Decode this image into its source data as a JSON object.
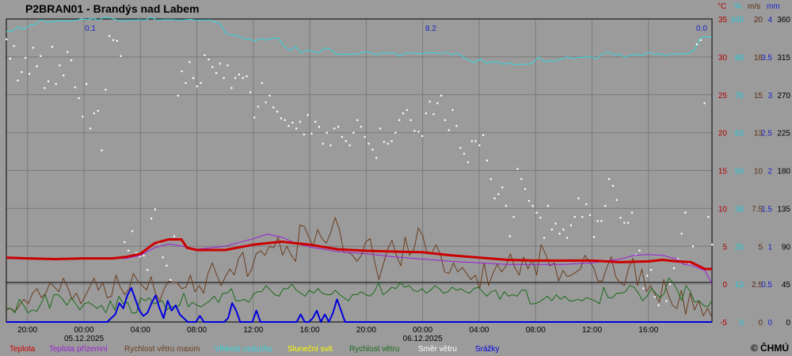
{
  "title": "P2BRAN01 - Brandýs nad Labem",
  "copyright": "© ČHMÚ",
  "colors": {
    "background": "#9b9b9b",
    "grid": "#7a7a7a",
    "teplota": "#cc0000",
    "teplota_prizemni": "#9b1fd6",
    "rychlost_vetru_maxim": "#6b3d1e",
    "vlhkost_vzduchu": "#33d6e0",
    "slunecni_svit": "#ffff00",
    "rychlost_vetru": "#1a6b1a",
    "smer_vetru": "#ffffff",
    "srazky": "#0000dd"
  },
  "chart_data": {
    "type": "line",
    "x_ticks": [
      "20:00",
      "00:00",
      "04:00",
      "08:00",
      "12:00",
      "16:00",
      "20:00",
      "00:00",
      "04:00",
      "08:00",
      "12:00",
      "16:00"
    ],
    "date_labels": [
      {
        "at": "00:00",
        "label": "05.12.2025"
      },
      {
        "at": "00:00",
        "label": "06.12.2025"
      }
    ],
    "axis_units": [
      "°C",
      "%",
      "m/s",
      "mm"
    ],
    "axes": [
      {
        "unit": "°C",
        "ticks": [
          "35",
          "30",
          "25",
          "20",
          "15",
          "10",
          "5",
          "0",
          "-5"
        ],
        "color": "#b00000"
      },
      {
        "unit": "%",
        "ticks": [
          "100",
          "88",
          "75",
          "63",
          "50",
          "38",
          "25",
          "13",
          "0"
        ],
        "color": "#22c8d8"
      },
      {
        "unit": "m/s",
        "ticks": [
          "20",
          "18",
          "15",
          "13",
          "10",
          "7.5",
          "5",
          "2.5",
          "0"
        ],
        "color": "#5a2d10"
      },
      {
        "unit": "mm",
        "ticks": [
          "4",
          "3.5",
          "3",
          "2.5",
          "2",
          "1.5",
          "1",
          "0.5",
          "0"
        ],
        "color": "#1a24c8"
      },
      {
        "unit": "°",
        "ticks": [
          "360",
          "315",
          "270",
          "225",
          "180",
          "135",
          "90",
          "45",
          "0"
        ],
        "color": "#000000"
      }
    ],
    "annotations": [
      "0.1",
      "8.2",
      "0.0"
    ],
    "legend": [
      "Teplota",
      "Teplota přízemní",
      "Rychlost větru maxim",
      "Vlhkost vzduchu",
      "Sluneční svit",
      "Rychlost větru",
      "Směr  větru",
      "Srážky"
    ],
    "x_range_hours": [
      -5.5,
      44.5
    ],
    "series": [
      {
        "name": "Teplota",
        "color": "#cc0000",
        "x": [
          -5.5,
          -4,
          -2,
          0,
          1,
          2,
          3,
          4,
          5,
          6,
          6.9,
          7.3,
          8,
          10,
          12,
          14,
          16,
          18,
          20,
          22,
          24,
          26,
          28,
          30,
          32,
          34,
          36,
          38,
          40,
          41,
          42,
          43,
          44,
          44.5
        ],
        "values": [
          3.5,
          3.4,
          3.3,
          3.4,
          3.4,
          3.4,
          3.6,
          4,
          5.4,
          5.9,
          5.9,
          4.8,
          4.5,
          4.5,
          5.2,
          5.6,
          5.2,
          4.6,
          4.4,
          4.3,
          4.2,
          3.8,
          3.5,
          3.2,
          3.1,
          3.1,
          3.1,
          2.9,
          3,
          3.2,
          3,
          2.9,
          2,
          2
        ]
      },
      {
        "name": "Teplota přízemní",
        "color": "#9b1fd6",
        "x": [
          -5.5,
          -4,
          -2,
          0,
          2,
          3,
          4,
          5,
          6,
          7,
          8,
          10,
          12,
          13,
          14,
          15,
          16,
          18,
          20,
          22,
          24,
          26,
          28,
          30,
          32,
          34,
          36,
          38,
          39,
          40,
          41,
          42,
          42.5,
          43,
          44,
          44.5
        ],
        "values": [
          3.4,
          3.3,
          3.3,
          3.3,
          3.4,
          3.4,
          3.8,
          4.8,
          5.3,
          5,
          4.6,
          5,
          6,
          6.6,
          6.2,
          5.4,
          4.9,
          4.3,
          4,
          3.6,
          3.3,
          3,
          2.8,
          2.6,
          2.6,
          2.6,
          2.8,
          3.3,
          3.8,
          3.9,
          3.8,
          3.3,
          2.6,
          2.5,
          1.8,
          0
        ]
      },
      {
        "name": "Rychlost větru maxim",
        "color": "#6b3d1e",
        "values": [
          0.8,
          0.9,
          0.7,
          1.1,
          1.5,
          1.2,
          1.9,
          2.2,
          1.6,
          1.9,
          2.6,
          2.3,
          2.0,
          2.9,
          2.3,
          1.5,
          1.9,
          1.2,
          1.7,
          2.3,
          2.9,
          2.1,
          2.6,
          1.6,
          1.7,
          3.1,
          2.3,
          1.8,
          2.2,
          3.2,
          2.7,
          2.4,
          2.1,
          3.0,
          1.9,
          1.4,
          2.2,
          2.7,
          2.6,
          2.6,
          2.2,
          2.3,
          3.1,
          2.0,
          2.4,
          1.9,
          3.2,
          3.9,
          3.1,
          2.4,
          3.0,
          3.5,
          3.1,
          4.2,
          4.6,
          3.0,
          3.5,
          4.5,
          4.7,
          4.4,
          5.0,
          4.9,
          5.6,
          4.4,
          5.0,
          4.4,
          4.0,
          6.4,
          6.3,
          5.6,
          5.0,
          6.1,
          5.5,
          5.2,
          5.9,
          6.9,
          6.1,
          4.6,
          4.6,
          4.4,
          4.0,
          4.4,
          5.3,
          5.5,
          4.0,
          2.8,
          3.8,
          4.8,
          5.4,
          4.4,
          3.7,
          5.6,
          4.4,
          4.8,
          6.2,
          5.7,
          4.5,
          4.5,
          5.1,
          4.5,
          3.3,
          3.2,
          3.9,
          3.3,
          3.6,
          3.2,
          2.8,
          3.1,
          2.2,
          3.9,
          2.4,
          3.2,
          3.8,
          3.3,
          3.7,
          4.5,
          3.6,
          3.1,
          4.3,
          3.5,
          4.1,
          3.1,
          5.1,
          4.5,
          3.7,
          3.9,
          2.7,
          3.4,
          3.0,
          3.1,
          3.3,
          3.5,
          4.4,
          4.0,
          3.6,
          2.7,
          2.7,
          3.6,
          4.3,
          3.0,
          2.6,
          2.4,
          3.6,
          4.2,
          2.4,
          3.5,
          2.0,
          2.4,
          1.8,
          1.3,
          2.8,
          1.8,
          1.1,
          0.9,
          2.1,
          0.5,
          1.9,
          0.8,
          1.4,
          0.4,
          0.9,
          0.3
        ]
      },
      {
        "name": "Vlhkost vzduchu",
        "color": "#33d6e0",
        "values": [
          95.9,
          96.0,
          97.4,
          96.6,
          97.8,
          98.2,
          99.8,
          98.9,
          99.1,
          99.4,
          99.5,
          99.3,
          99.6,
          100.0,
          99.8,
          100.2,
          99.5,
          100.6,
          100.3,
          99.8,
          99.4,
          99.5,
          99.7,
          99.8,
          99.6,
          100.6,
          99.6,
          99.8,
          99.8,
          99.8,
          99.5,
          99.8,
          99.9,
          99.6,
          99.6,
          99.8,
          99.2,
          98.3,
          95.2,
          94.7,
          94.5,
          93.5,
          93.4,
          92.8,
          93.6,
          93.0,
          93.7,
          93.6,
          91.1,
          89.6,
          90.8,
          88.8,
          89.8,
          89.2,
          88.8,
          90.4,
          90.1,
          88.3,
          88.3,
          88.4,
          88.4,
          88.5,
          89.2,
          88.9,
          88.2,
          88.8,
          88.7,
          88.8,
          87.7,
          88.8,
          88.8,
          88.6,
          88.6,
          89.0,
          88.9,
          88.6,
          89.1,
          88.2,
          88.7,
          87.5,
          86.3,
          85.6,
          86.9,
          85.4,
          85.9,
          85.7,
          85.1,
          85.4,
          84.9,
          85.1,
          85.0,
          85.4,
          87.5,
          85.9,
          86.2,
          86.1,
          86.8,
          87.5,
          86.9,
          87.3,
          87.4,
          87.6,
          86.9,
          88.4,
          89.1,
          88.2,
          88.3,
          87.3,
          88.1,
          88.3,
          87.9,
          89.0,
          88.3,
          88.5,
          87.8,
          88.6,
          88.4,
          88.6,
          88.6,
          89.9,
          93.7,
          94.2,
          94.0
        ]
      },
      {
        "name": "Rychlost větru",
        "color": "#1a6b1a",
        "values": [
          0.9,
          0.9,
          0.6,
          1.5,
          1.1,
          0.6,
          0.8,
          0.7,
          1.2,
          1.8,
          0.9,
          1.8,
          1.8,
          1.5,
          1.1,
          1.6,
          1.2,
          0.8,
          1.2,
          1.3,
          1.1,
          0.9,
          1.1,
          0.6,
          1.4,
          0.8,
          1.7,
          1.2,
          1.3,
          0.6,
          0.6,
          1.6,
          1.4,
          1.6,
          1.2,
          1.3,
          1.4,
          0.8,
          1.0,
          1.0,
          1.1,
          1.9,
          1.0,
          1.3,
          1.1,
          1.0,
          1.2,
          1.4,
          1.7,
          1.3,
          1.9,
          1.9,
          2.2,
          1.4,
          1.4,
          1.5,
          1.3,
          1.8,
          2.0,
          2.0,
          2.4,
          2.1,
          1.8,
          1.7,
          2.2,
          2.2,
          2.5,
          2.1,
          1.9,
          1.7,
          2.1,
          1.9,
          2.2,
          1.9,
          1.8,
          1.8,
          2.1,
          1.8,
          1.6,
          1.4,
          1.8,
          1.8,
          2.0,
          1.8,
          1.7,
          2.0,
          2.6,
          1.8,
          2.0,
          2.3,
          2.2,
          2.6,
          2.3,
          2.4,
          2.1,
          2.0,
          2.2,
          1.9,
          2.1,
          2.4,
          2.2,
          1.9,
          2.0,
          2.3,
          2.1,
          2.2,
          2.0,
          1.9,
          2.2,
          2.3,
          2.0,
          1.7,
          2.0,
          2.1,
          1.5,
          2.0,
          1.7,
          1.8,
          1.7,
          2.1,
          2.1,
          1.2,
          1.2,
          1.3,
          1.5,
          1.7,
          1.4,
          1.8,
          1.5,
          1.7,
          1.4,
          1.4,
          1.5,
          1.4,
          1.6,
          1.5,
          1.4,
          1.2,
          2.3,
          1.6,
          1.6,
          1.9,
          1.9,
          2.0,
          2.4,
          2.3,
          1.9,
          1.4,
          1.7,
          2.2,
          1.9,
          1.6,
          1.9,
          2.9,
          2.6,
          2.1,
          1.4,
          2.4,
          2.0,
          1.3,
          1.4,
          1.1,
          1.0,
          1.4
        ]
      },
      {
        "name": "Směr  větru",
        "color": "#ffffff",
        "values": [
          336,
          313,
          328,
          287,
          297,
          314,
          295,
          326,
          304,
          316,
          278,
          286,
          327,
          283,
          305,
          293,
          321,
          311,
          279,
          266,
          244,
          283,
          230,
          248,
          251,
          204,
          276,
          340,
          335,
          334,
          316,
          95,
          85,
          108,
          82,
          78,
          79,
          62,
          123,
          134,
          94,
          77,
          67,
          50,
          102,
          269,
          298,
          284,
          309,
          290,
          280,
          284,
          317,
          312,
          303,
          296,
          307,
          290,
          305,
          278,
          290,
          294,
          290,
          292,
          273,
          243,
          256,
          284,
          261,
          269,
          255,
          250,
          242,
          240,
          233,
          237,
          230,
          238,
          223,
          246,
          224,
          238,
          232,
          212,
          225,
          210,
          230,
          232,
          220,
          215,
          210,
          225,
          240,
          232,
          220,
          212,
          205,
          195,
          230,
          214,
          212,
          215,
          225,
          240,
          248,
          252,
          240,
          227,
          226,
          221,
          248,
          262,
          247,
          260,
          269,
          240,
          228,
          252,
          233,
          207,
          200,
          190,
          215,
          215,
          210,
          222,
          192,
          170,
          147,
          152,
          160,
          138,
          102,
          125,
          182,
          170,
          158,
          144,
          138,
          130,
          124,
          100,
          138,
          110,
          117,
          105,
          110,
          100,
          115,
          125,
          147,
          125,
          140,
          127,
          101,
          120,
          120,
          138,
          170,
          162,
          145,
          124,
          118,
          118,
          130,
          80,
          85,
          40,
          55,
          62,
          30,
          20,
          0,
          25,
          45,
          64,
          75,
          105,
          130,
          70,
          90,
          330,
          335,
          260,
          125,
          92
        ]
      },
      {
        "name": "Srážky",
        "color": "#0000dd",
        "values": [
          0,
          0,
          0,
          0,
          0,
          0,
          0,
          0,
          0,
          0,
          0,
          0,
          0,
          0,
          0,
          0,
          0,
          0,
          0,
          0,
          0,
          0,
          0,
          0,
          0,
          0,
          0.05,
          0.1,
          0.25,
          0.18,
          0.35,
          0.45,
          0.3,
          0.15,
          0.08,
          0.12,
          0.25,
          0.35,
          0.18,
          0.05,
          0.28,
          0.15,
          0.22,
          0.1,
          0.05,
          0,
          0,
          0,
          0.08,
          0,
          0,
          0,
          0,
          0,
          0,
          0.05,
          0.25,
          0.15,
          0,
          0,
          0,
          0,
          0.15,
          0,
          0,
          0,
          0,
          0,
          0,
          0,
          0,
          0,
          0,
          0.1,
          0,
          0,
          0.05,
          0.15,
          0,
          0.1,
          0,
          0.12,
          0.3,
          0.15,
          0,
          0,
          0,
          0,
          0,
          0,
          0,
          0,
          0,
          0,
          0,
          0,
          0,
          0,
          0,
          0,
          0,
          0,
          0,
          0,
          0,
          0,
          0,
          0,
          0,
          0,
          0,
          0,
          0,
          0,
          0,
          0,
          0,
          0,
          0,
          0,
          0,
          0,
          0,
          0,
          0,
          0,
          0,
          0,
          0,
          0,
          0,
          0,
          0,
          0,
          0,
          0,
          0,
          0,
          0,
          0,
          0,
          0,
          0,
          0,
          0,
          0,
          0,
          0,
          0,
          0,
          0,
          0,
          0,
          0,
          0,
          0,
          0,
          0,
          0,
          0,
          0,
          0,
          0,
          0,
          0,
          0,
          0,
          0,
          0,
          0,
          0,
          0,
          0,
          0,
          0,
          0
        ]
      }
    ]
  }
}
